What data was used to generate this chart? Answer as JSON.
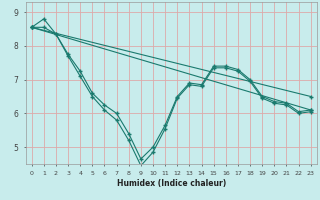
{
  "xlabel": "Humidex (Indice chaleur)",
  "bg_color": "#c8ecec",
  "grid_color": "#ddaaaa",
  "line_color": "#1a7a6e",
  "xlim": [
    -0.5,
    23.5
  ],
  "ylim": [
    4.5,
    9.3
  ],
  "xticks": [
    0,
    1,
    2,
    3,
    4,
    5,
    6,
    7,
    8,
    9,
    10,
    11,
    12,
    13,
    14,
    15,
    16,
    17,
    18,
    19,
    20,
    21,
    22,
    23
  ],
  "yticks": [
    5,
    6,
    7,
    8,
    9
  ],
  "series1_straight": {
    "x": [
      0,
      23
    ],
    "y": [
      8.55,
      6.1
    ]
  },
  "series2_straight": {
    "x": [
      0,
      23
    ],
    "y": [
      8.55,
      6.5
    ]
  },
  "series3_dip": {
    "x": [
      0,
      1,
      2,
      3,
      4,
      5,
      6,
      7,
      8,
      9,
      10,
      11,
      12,
      13,
      14,
      15,
      16,
      17,
      18,
      19,
      20,
      21,
      22,
      23
    ],
    "y": [
      8.55,
      8.8,
      8.35,
      7.75,
      7.25,
      6.6,
      6.25,
      6.0,
      5.4,
      4.65,
      5.0,
      5.65,
      6.5,
      6.9,
      6.85,
      7.4,
      7.4,
      7.3,
      7.0,
      6.5,
      6.35,
      6.3,
      6.05,
      6.1
    ]
  },
  "series4_dip": {
    "x": [
      0,
      1,
      2,
      3,
      4,
      5,
      6,
      7,
      8,
      9,
      10,
      11,
      12,
      13,
      14,
      15,
      16,
      17,
      18,
      19,
      20,
      21,
      22,
      23
    ],
    "y": [
      8.55,
      8.55,
      8.35,
      7.7,
      7.1,
      6.5,
      6.1,
      5.8,
      5.2,
      4.45,
      4.85,
      5.55,
      6.45,
      6.85,
      6.8,
      7.35,
      7.35,
      7.25,
      6.95,
      6.45,
      6.3,
      6.25,
      6.0,
      6.05
    ]
  }
}
